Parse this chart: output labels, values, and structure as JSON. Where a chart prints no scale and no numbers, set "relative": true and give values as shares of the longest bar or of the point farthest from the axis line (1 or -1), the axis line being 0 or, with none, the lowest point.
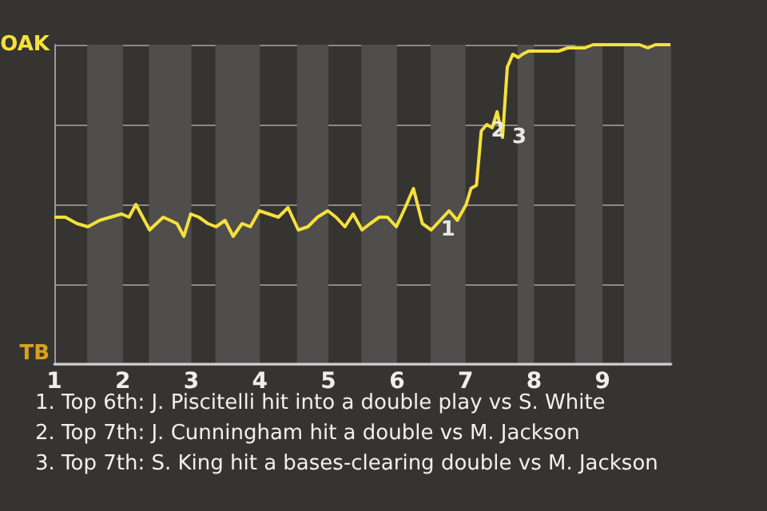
{
  "chart_data": {
    "type": "line",
    "relative": true,
    "x": [
      1,
      1.16,
      1.33,
      1.49,
      1.66,
      1.82,
      1.98,
      2.09,
      2.19,
      2.29,
      2.39,
      2.49,
      2.59,
      2.69,
      2.79,
      2.89,
      2.99,
      3.11,
      3.24,
      3.36,
      3.49,
      3.61,
      3.74,
      3.86,
      3.99,
      4.13,
      4.27,
      4.41,
      4.56,
      4.7,
      4.84,
      4.99,
      5.11,
      5.24,
      5.36,
      5.49,
      5.61,
      5.74,
      5.86,
      5.99,
      6.12,
      6.24,
      6.37,
      6.5,
      6.63,
      6.76,
      6.88,
      7.01,
      7.08,
      7.16,
      7.23,
      7.31,
      7.39,
      7.46,
      7.54,
      7.61,
      7.69,
      7.77,
      7.83,
      7.92,
      7.99,
      8.11,
      8.24,
      8.36,
      8.49,
      8.61,
      8.74,
      8.86,
      8.99,
      9.1,
      9.21,
      9.32,
      9.43,
      9.54,
      9.66,
      9.77,
      9.88,
      9.99
    ],
    "series": [
      {
        "color": "#f5e03c",
        "values": [
          0.46,
          0.46,
          0.44,
          0.43,
          0.45,
          0.46,
          0.47,
          0.46,
          0.5,
          0.46,
          0.42,
          0.44,
          0.46,
          0.45,
          0.44,
          0.4,
          0.47,
          0.46,
          0.44,
          0.43,
          0.45,
          0.4,
          0.44,
          0.43,
          0.48,
          0.47,
          0.46,
          0.49,
          0.42,
          0.43,
          0.46,
          0.48,
          0.46,
          0.43,
          0.47,
          0.42,
          0.44,
          0.46,
          0.46,
          0.43,
          0.49,
          0.55,
          0.44,
          0.42,
          0.45,
          0.48,
          0.45,
          0.5,
          0.55,
          0.56,
          0.73,
          0.75,
          0.74,
          0.79,
          0.71,
          0.93,
          0.97,
          0.96,
          0.97,
          0.98,
          0.98,
          0.98,
          0.98,
          0.98,
          0.99,
          0.99,
          0.99,
          1,
          1,
          1,
          1,
          1,
          1,
          1,
          0.99,
          1,
          1,
          1
        ]
      }
    ],
    "xlim": [
      1,
      10
    ],
    "xticks": [
      1,
      2,
      3,
      4,
      5,
      6,
      7,
      8,
      9
    ],
    "grid": "y",
    "bands": [
      {
        "axis": "x",
        "from": 1.48,
        "to": 2,
        "color": "#4f4e4c"
      },
      {
        "axis": "x",
        "from": 2.38,
        "to": 3,
        "color": "#4f4e4c"
      },
      {
        "axis": "x",
        "from": 3.35,
        "to": 4,
        "color": "#4f4e4c"
      },
      {
        "axis": "x",
        "from": 4.54,
        "to": 5,
        "color": "#4f4e4c"
      },
      {
        "axis": "x",
        "from": 5.48,
        "to": 6,
        "color": "#4f4e4c"
      },
      {
        "axis": "x",
        "from": 6.49,
        "to": 7,
        "color": "#4f4e4c"
      },
      {
        "axis": "x",
        "from": 7.76,
        "to": 8,
        "color": "#4f4e4c"
      },
      {
        "axis": "x",
        "from": 8.6,
        "to": 9,
        "color": "#4f4e4c"
      },
      {
        "axis": "x",
        "from": 9.31,
        "to": 10,
        "color": "#4f4e4c"
      }
    ],
    "annotations": [
      "OAK",
      "TB",
      {
        "text": "1",
        "x": 6.5,
        "y": 0.42
      },
      {
        "text": "2",
        "x": 7.23,
        "y": 0.73
      },
      {
        "text": "3",
        "x": 7.54,
        "y": 0.71
      },
      "1. Top 6th: J. Piscitelli hit into a double play vs S. White",
      "2. Top 7th: J. Cunningham hit a double vs M. Jackson",
      "3. Top 7th: S. King hit a bases-clearing double vs M. Jackson"
    ]
  }
}
